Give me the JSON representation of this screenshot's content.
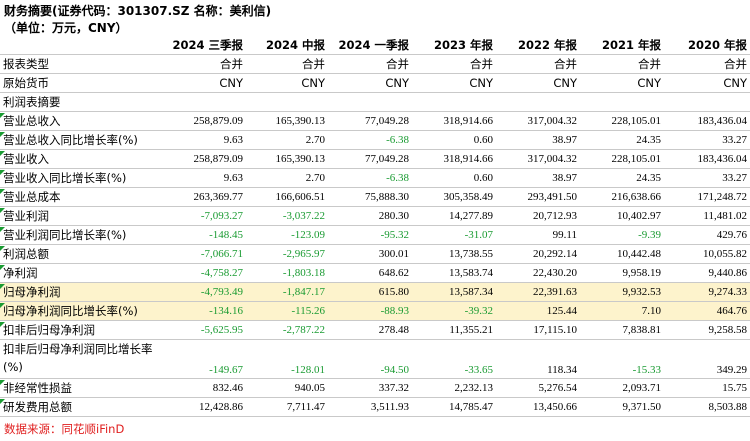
{
  "header": {
    "title": "财务摘要(证券代码：301307.SZ 名称：美利信)",
    "subtitle": "（单位：万元，CNY）"
  },
  "table": {
    "columns": [
      "",
      "2024 三季报",
      "2024 中报",
      "2024 一季报",
      "2023 年报",
      "2022 年报",
      "2021 年报",
      "2020 年报"
    ],
    "rows": [
      {
        "label": "报表类型",
        "values": [
          "合并",
          "合并",
          "合并",
          "合并",
          "合并",
          "合并",
          "合并"
        ],
        "type": "text"
      },
      {
        "label": "原始货币",
        "values": [
          "CNY",
          "CNY",
          "CNY",
          "CNY",
          "CNY",
          "CNY",
          "CNY"
        ],
        "type": "text"
      },
      {
        "label": "利润表摘要",
        "values": [
          "",
          "",
          "",
          "",
          "",
          "",
          ""
        ],
        "type": "section"
      },
      {
        "label": "营业总收入",
        "values": [
          "258,879.09",
          "165,390.13",
          "77,049.28",
          "318,914.66",
          "317,004.32",
          "228,105.01",
          "183,436.04"
        ],
        "marked": true
      },
      {
        "label": "营业总收入同比增长率(%)",
        "values": [
          "9.63",
          "2.70",
          "-6.38",
          "0.60",
          "38.97",
          "24.35",
          "33.27"
        ],
        "marked": true
      },
      {
        "label": "营业收入",
        "values": [
          "258,879.09",
          "165,390.13",
          "77,049.28",
          "318,914.66",
          "317,004.32",
          "228,105.01",
          "183,436.04"
        ],
        "marked": true
      },
      {
        "label": "营业收入同比增长率(%)",
        "values": [
          "9.63",
          "2.70",
          "-6.38",
          "0.60",
          "38.97",
          "24.35",
          "33.27"
        ],
        "marked": true
      },
      {
        "label": "营业总成本",
        "values": [
          "263,369.77",
          "166,606.51",
          "75,888.30",
          "305,358.49",
          "293,491.50",
          "216,638.66",
          "171,248.72"
        ],
        "marked": true
      },
      {
        "label": "营业利润",
        "values": [
          "-7,093.27",
          "-3,037.22",
          "280.30",
          "14,277.89",
          "20,712.93",
          "10,402.97",
          "11,481.02"
        ],
        "marked": true
      },
      {
        "label": "营业利润同比增长率(%)",
        "values": [
          "-148.45",
          "-123.09",
          "-95.32",
          "-31.07",
          "99.11",
          "-9.39",
          "429.76"
        ],
        "marked": true
      },
      {
        "label": "利润总额",
        "values": [
          "-7,066.71",
          "-2,965.97",
          "300.01",
          "13,738.55",
          "20,292.14",
          "10,442.48",
          "10,055.82"
        ],
        "marked": true
      },
      {
        "label": "净利润",
        "values": [
          "-4,758.27",
          "-1,803.18",
          "648.62",
          "13,583.74",
          "22,430.20",
          "9,958.19",
          "9,440.86"
        ],
        "marked": true
      },
      {
        "label": "归母净利润",
        "values": [
          "-4,793.49",
          "-1,847.17",
          "615.80",
          "13,587.34",
          "22,391.63",
          "9,932.53",
          "9,274.33"
        ],
        "marked": true,
        "highlight": true
      },
      {
        "label": "归母净利润同比增长率(%)",
        "values": [
          "-134.16",
          "-115.26",
          "-88.93",
          "-39.32",
          "125.44",
          "7.10",
          "464.76"
        ],
        "marked": true,
        "highlight": true
      },
      {
        "label": "扣非后归母净利润",
        "values": [
          "-5,625.95",
          "-2,787.22",
          "278.48",
          "11,355.21",
          "17,115.10",
          "7,838.81",
          "9,258.58"
        ],
        "marked": true
      },
      {
        "label": "扣非后归母净利润同比增长率(%)",
        "values": [
          "-149.67",
          "-128.01",
          "-94.50",
          "-33.65",
          "118.34",
          "-15.33",
          "349.29"
        ],
        "tall": true
      },
      {
        "label": "非经常性损益",
        "values": [
          "832.46",
          "940.05",
          "337.32",
          "2,232.13",
          "5,276.54",
          "2,093.71",
          "15.75"
        ],
        "marked": true
      },
      {
        "label": "研发费用总额",
        "values": [
          "12,428.86",
          "7,711.47",
          "3,511.93",
          "14,785.47",
          "13,450.66",
          "9,371.50",
          "8,503.88"
        ],
        "marked": true
      }
    ]
  },
  "footer": {
    "source": "数据来源：同花顺iFinD"
  },
  "colors": {
    "negative": "#1a9b32",
    "highlight_row": "#fdf3cc",
    "source_text": "#e02020"
  }
}
